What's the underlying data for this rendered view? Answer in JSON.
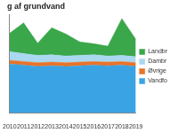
{
  "chart_data": {
    "type": "area",
    "title": "g af grundvand",
    "categories": [
      "2010",
      "2011",
      "2012",
      "2013",
      "2014",
      "2015",
      "2016",
      "2017",
      "2018",
      "2019"
    ],
    "series": [
      {
        "name": "Vandfo",
        "color": "#3aa3e3",
        "values": [
          400,
          390,
          380,
          385,
          380,
          385,
          390,
          385,
          390,
          380
        ]
      },
      {
        "name": "Øvrige",
        "color": "#e8742a",
        "values": [
          30,
          30,
          30,
          30,
          30,
          30,
          30,
          30,
          30,
          30
        ]
      },
      {
        "name": "Dambr",
        "color": "#a9d8f0",
        "values": [
          70,
          65,
          60,
          60,
          55,
          55,
          55,
          50,
          50,
          50
        ]
      },
      {
        "name": "Landbr",
        "color": "#3aa74a",
        "values": [
          150,
          250,
          100,
          220,
          180,
          110,
          90,
          80,
          300,
          140
        ]
      }
    ],
    "ylim": [
      0,
      800
    ],
    "stacked": true,
    "grid": false,
    "legend": "right",
    "tick_labels": "x"
  }
}
